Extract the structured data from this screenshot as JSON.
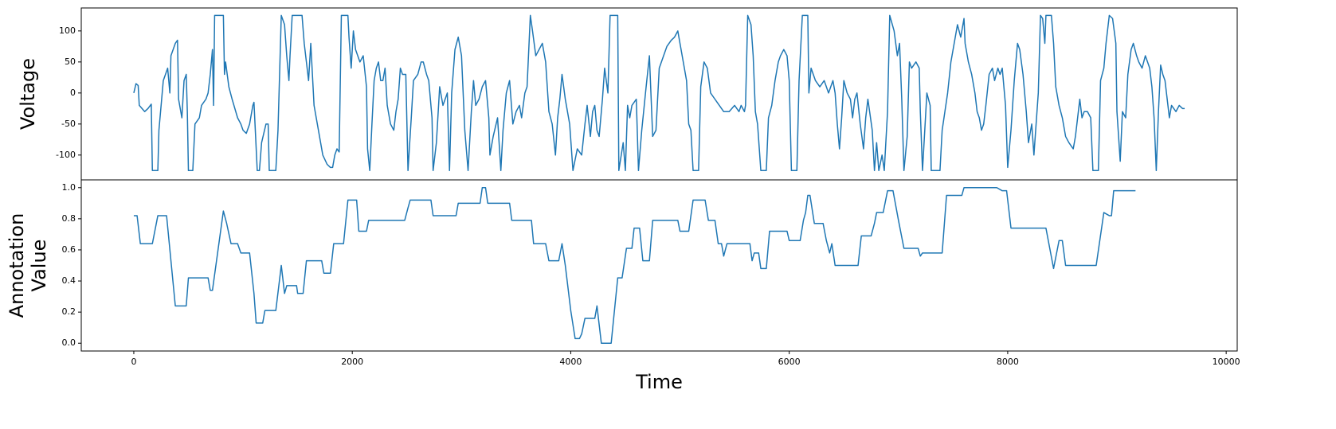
{
  "chart_data": [
    {
      "type": "line",
      "ylabel": "Voltage",
      "color": "#1f77b4",
      "xlim": [
        -481,
        10101
      ],
      "ylim": [
        -140,
        137
      ],
      "yticks": [
        -100,
        -50,
        0,
        50,
        100
      ],
      "x": [
        0,
        20,
        40,
        50,
        100,
        130,
        160,
        170,
        220,
        230,
        270,
        310,
        330,
        340,
        380,
        400,
        410,
        440,
        460,
        480,
        490,
        500,
        540,
        560,
        600,
        620,
        660,
        680,
        700,
        720,
        730,
        740,
        820,
        830,
        840,
        870,
        900,
        950,
        980,
        1000,
        1030,
        1060,
        1090,
        1100,
        1130,
        1150,
        1170,
        1210,
        1230,
        1240,
        1300,
        1320,
        1350,
        1380,
        1400,
        1420,
        1430,
        1450,
        1540,
        1560,
        1580,
        1600,
        1620,
        1650,
        1700,
        1730,
        1770,
        1800,
        1820,
        1840,
        1860,
        1880,
        1900,
        1960,
        1970,
        1990,
        2010,
        2030,
        2070,
        2100,
        2130,
        2140,
        2160,
        2180,
        2200,
        2220,
        2240,
        2260,
        2280,
        2300,
        2320,
        2350,
        2380,
        2400,
        2420,
        2440,
        2460,
        2490,
        2510,
        2540,
        2560,
        2600,
        2630,
        2650,
        2680,
        2700,
        2730,
        2740,
        2770,
        2800,
        2830,
        2870,
        2890,
        2910,
        2940,
        2970,
        3000,
        3030,
        3060,
        3090,
        3110,
        3130,
        3160,
        3190,
        3220,
        3250,
        3260,
        3290,
        3330,
        3360,
        3380,
        3410,
        3440,
        3470,
        3500,
        3530,
        3550,
        3580,
        3600,
        3630,
        3650,
        3680,
        3710,
        3740,
        3770,
        3800,
        3830,
        3860,
        3880,
        3900,
        3920,
        3950,
        3990,
        4020,
        4060,
        4100,
        4130,
        4150,
        4180,
        4200,
        4220,
        4240,
        4260,
        4290,
        4310,
        4340,
        4360,
        4430,
        4440,
        4480,
        4500,
        4520,
        4540,
        4560,
        4600,
        4620,
        4650,
        4690,
        4720,
        4750,
        4780,
        4810,
        4850,
        4880,
        4920,
        4950,
        4980,
        5000,
        5030,
        5060,
        5080,
        5100,
        5120,
        5170,
        5190,
        5220,
        5250,
        5280,
        5320,
        5360,
        5400,
        5450,
        5500,
        5540,
        5560,
        5590,
        5600,
        5620,
        5650,
        5670,
        5690,
        5710,
        5740,
        5790,
        5810,
        5840,
        5870,
        5900,
        5920,
        5950,
        5980,
        6000,
        6020,
        6070,
        6090,
        6120,
        6170,
        6180,
        6200,
        6240,
        6280,
        6320,
        6360,
        6400,
        6420,
        6440,
        6460,
        6480,
        6500,
        6530,
        6560,
        6580,
        6600,
        6620,
        6650,
        6680,
        6700,
        6720,
        6760,
        6780,
        6800,
        6820,
        6850,
        6870,
        6900,
        6920,
        6960,
        6990,
        7010,
        7030,
        7050,
        7080,
        7100,
        7120,
        7160,
        7190,
        7200,
        7220,
        7260,
        7290,
        7300,
        7380,
        7400,
        7450,
        7480,
        7510,
        7540,
        7570,
        7600,
        7610,
        7640,
        7670,
        7700,
        7720,
        7740,
        7760,
        7780,
        7800,
        7830,
        7860,
        7880,
        7910,
        7930,
        7950,
        7980,
        8000,
        8030,
        8060,
        8090,
        8110,
        8140,
        8170,
        8190,
        8220,
        8240,
        8260,
        8280,
        8300,
        8320,
        8340,
        8350,
        8400,
        8420,
        8440,
        8470,
        8500,
        8530,
        8560,
        8600,
        8620,
        8640,
        8660,
        8680,
        8700,
        8730,
        8760,
        8780,
        8830,
        8850,
        8880,
        8900,
        8930,
        8960,
        8990,
        9000,
        9030,
        9050,
        9080,
        9100,
        9130,
        9150,
        9180,
        9200,
        9230,
        9260,
        9300,
        9320,
        9340,
        9360,
        9380,
        9400,
        9420,
        9440,
        9460,
        9480,
        9500,
        9540,
        9570,
        9600,
        9620
      ],
      "values": [
        0,
        15,
        12,
        -20,
        -30,
        -25,
        -18,
        -125,
        -125,
        -60,
        20,
        40,
        0,
        60,
        80,
        85,
        -10,
        -40,
        20,
        30,
        -30,
        -125,
        -125,
        -50,
        -40,
        -20,
        -10,
        0,
        30,
        70,
        -20,
        125,
        125,
        30,
        50,
        10,
        -10,
        -40,
        -50,
        -60,
        -65,
        -50,
        -20,
        -15,
        -125,
        -125,
        -80,
        -50,
        -50,
        -125,
        -125,
        -60,
        125,
        110,
        60,
        20,
        60,
        125,
        125,
        80,
        50,
        20,
        80,
        -20,
        -70,
        -100,
        -115,
        -120,
        -120,
        -100,
        -90,
        -95,
        125,
        125,
        90,
        40,
        100,
        70,
        50,
        60,
        10,
        -90,
        -125,
        -50,
        20,
        40,
        50,
        20,
        20,
        40,
        -20,
        -50,
        -60,
        -30,
        -10,
        40,
        30,
        30,
        -125,
        -40,
        20,
        30,
        50,
        50,
        30,
        20,
        -40,
        -125,
        -80,
        10,
        -20,
        0,
        -125,
        0,
        70,
        90,
        60,
        -60,
        -125,
        -30,
        20,
        -20,
        -10,
        10,
        20,
        -40,
        -100,
        -70,
        -40,
        -125,
        -60,
        0,
        20,
        -50,
        -30,
        -20,
        -40,
        0,
        10,
        125,
        100,
        60,
        70,
        80,
        50,
        -30,
        -50,
        -100,
        -40,
        -10,
        30,
        -10,
        -50,
        -125,
        -90,
        -100,
        -50,
        -20,
        -70,
        -30,
        -20,
        -60,
        -70,
        -10,
        40,
        0,
        125,
        125,
        -125,
        -80,
        -125,
        -20,
        -40,
        -20,
        -10,
        -125,
        -60,
        10,
        60,
        -70,
        -60,
        40,
        60,
        75,
        85,
        90,
        100,
        80,
        50,
        20,
        -50,
        -60,
        -125,
        -125,
        10,
        50,
        40,
        0,
        -10,
        -20,
        -30,
        -30,
        -20,
        -30,
        -20,
        -30,
        -20,
        125,
        110,
        60,
        -30,
        -50,
        -125,
        -125,
        -40,
        -20,
        20,
        50,
        60,
        70,
        60,
        20,
        -125,
        -125,
        20,
        125,
        125,
        0,
        40,
        20,
        10,
        20,
        0,
        20,
        0,
        -50,
        -90,
        -40,
        20,
        0,
        -10,
        -40,
        -10,
        0,
        -50,
        -90,
        -40,
        -10,
        -60,
        -125,
        -80,
        -125,
        -100,
        -125,
        -30,
        125,
        100,
        60,
        80,
        -10,
        -125,
        -70,
        50,
        40,
        50,
        40,
        -30,
        -125,
        0,
        -20,
        -125,
        -125,
        -60,
        0,
        50,
        80,
        110,
        90,
        120,
        80,
        50,
        30,
        0,
        -30,
        -40,
        -60,
        -50,
        -20,
        30,
        40,
        20,
        40,
        30,
        40,
        -20,
        -120,
        -60,
        20,
        80,
        70,
        30,
        -30,
        -80,
        -50,
        -100,
        -50,
        0,
        125,
        120,
        80,
        125,
        125,
        80,
        10,
        -20,
        -40,
        -70,
        -80,
        -90,
        -70,
        -40,
        -10,
        -40,
        -30,
        -30,
        -40,
        -125,
        -125,
        20,
        40,
        80,
        125,
        120,
        80,
        -30,
        -110,
        -30,
        -40,
        30,
        70,
        80,
        60,
        50,
        40,
        60,
        40,
        10,
        -40,
        -125,
        -30,
        45,
        30,
        20,
        -10,
        -40,
        -20,
        -30,
        -20,
        -25,
        -25
      ]
    },
    {
      "type": "line",
      "ylabel": "Annotation\nValue",
      "xlabel": "Time",
      "color": "#1f77b4",
      "xlim": [
        -481,
        10101
      ],
      "xticks": [
        0,
        2000,
        4000,
        6000,
        8000,
        10000
      ],
      "ylim": [
        -0.05,
        1.05
      ],
      "yticks": [
        {
          "value": 0,
          "label": "0.0"
        },
        0.2,
        0.4,
        0.6,
        0.8,
        {
          "value": 1,
          "label": "1.0"
        }
      ],
      "x": [
        0,
        30,
        60,
        170,
        220,
        300,
        380,
        480,
        500,
        680,
        700,
        720,
        820,
        850,
        890,
        950,
        980,
        1060,
        1100,
        1120,
        1180,
        1200,
        1300,
        1350,
        1380,
        1400,
        1490,
        1500,
        1550,
        1580,
        1720,
        1740,
        1800,
        1830,
        1920,
        1960,
        2040,
        2060,
        2130,
        2150,
        2480,
        2510,
        2530,
        2720,
        2740,
        2950,
        2970,
        3170,
        3190,
        3220,
        3240,
        3440,
        3460,
        3640,
        3660,
        3770,
        3800,
        3890,
        3920,
        3950,
        4000,
        4040,
        4080,
        4100,
        4130,
        4220,
        4240,
        4280,
        4370,
        4430,
        4470,
        4510,
        4560,
        4580,
        4630,
        4660,
        4720,
        4750,
        4980,
        5000,
        5080,
        5120,
        5230,
        5260,
        5320,
        5350,
        5380,
        5400,
        5430,
        5640,
        5660,
        5680,
        5720,
        5740,
        5790,
        5820,
        5980,
        6000,
        6100,
        6130,
        6150,
        6170,
        6190,
        6230,
        6310,
        6340,
        6370,
        6390,
        6420,
        6630,
        6660,
        6750,
        6780,
        6800,
        6860,
        6900,
        6950,
        7000,
        7050,
        7180,
        7200,
        7220,
        7400,
        7440,
        7580,
        7600,
        7900,
        7950,
        7990,
        8030,
        8350,
        8420,
        8470,
        8500,
        8530,
        8810,
        8880,
        8930,
        8950,
        8970,
        9170
      ],
      "values": [
        0.82,
        0.82,
        0.64,
        0.64,
        0.82,
        0.82,
        0.24,
        0.24,
        0.42,
        0.42,
        0.34,
        0.34,
        0.85,
        0.77,
        0.64,
        0.64,
        0.58,
        0.58,
        0.32,
        0.13,
        0.13,
        0.21,
        0.21,
        0.5,
        0.32,
        0.37,
        0.37,
        0.32,
        0.32,
        0.53,
        0.53,
        0.45,
        0.45,
        0.64,
        0.64,
        0.92,
        0.92,
        0.72,
        0.72,
        0.79,
        0.79,
        0.87,
        0.92,
        0.92,
        0.82,
        0.82,
        0.9,
        0.9,
        1.0,
        1.0,
        0.9,
        0.9,
        0.79,
        0.79,
        0.64,
        0.64,
        0.53,
        0.53,
        0.64,
        0.5,
        0.21,
        0.03,
        0.03,
        0.06,
        0.16,
        0.16,
        0.24,
        0,
        0,
        0.42,
        0.42,
        0.61,
        0.61,
        0.74,
        0.74,
        0.53,
        0.53,
        0.79,
        0.79,
        0.72,
        0.72,
        0.92,
        0.92,
        0.79,
        0.79,
        0.64,
        0.64,
        0.56,
        0.64,
        0.64,
        0.53,
        0.58,
        0.58,
        0.48,
        0.48,
        0.72,
        0.72,
        0.66,
        0.66,
        0.79,
        0.84,
        0.95,
        0.95,
        0.77,
        0.77,
        0.66,
        0.58,
        0.64,
        0.5,
        0.5,
        0.69,
        0.69,
        0.77,
        0.84,
        0.84,
        0.98,
        0.98,
        0.79,
        0.61,
        0.61,
        0.56,
        0.58,
        0.58,
        0.95,
        0.95,
        1.0,
        1.0,
        0.98,
        0.98,
        0.74,
        0.74,
        0.48,
        0.66,
        0.66,
        0.5,
        0.5,
        0.84,
        0.82,
        0.82,
        0.98,
        0.98
      ]
    }
  ]
}
